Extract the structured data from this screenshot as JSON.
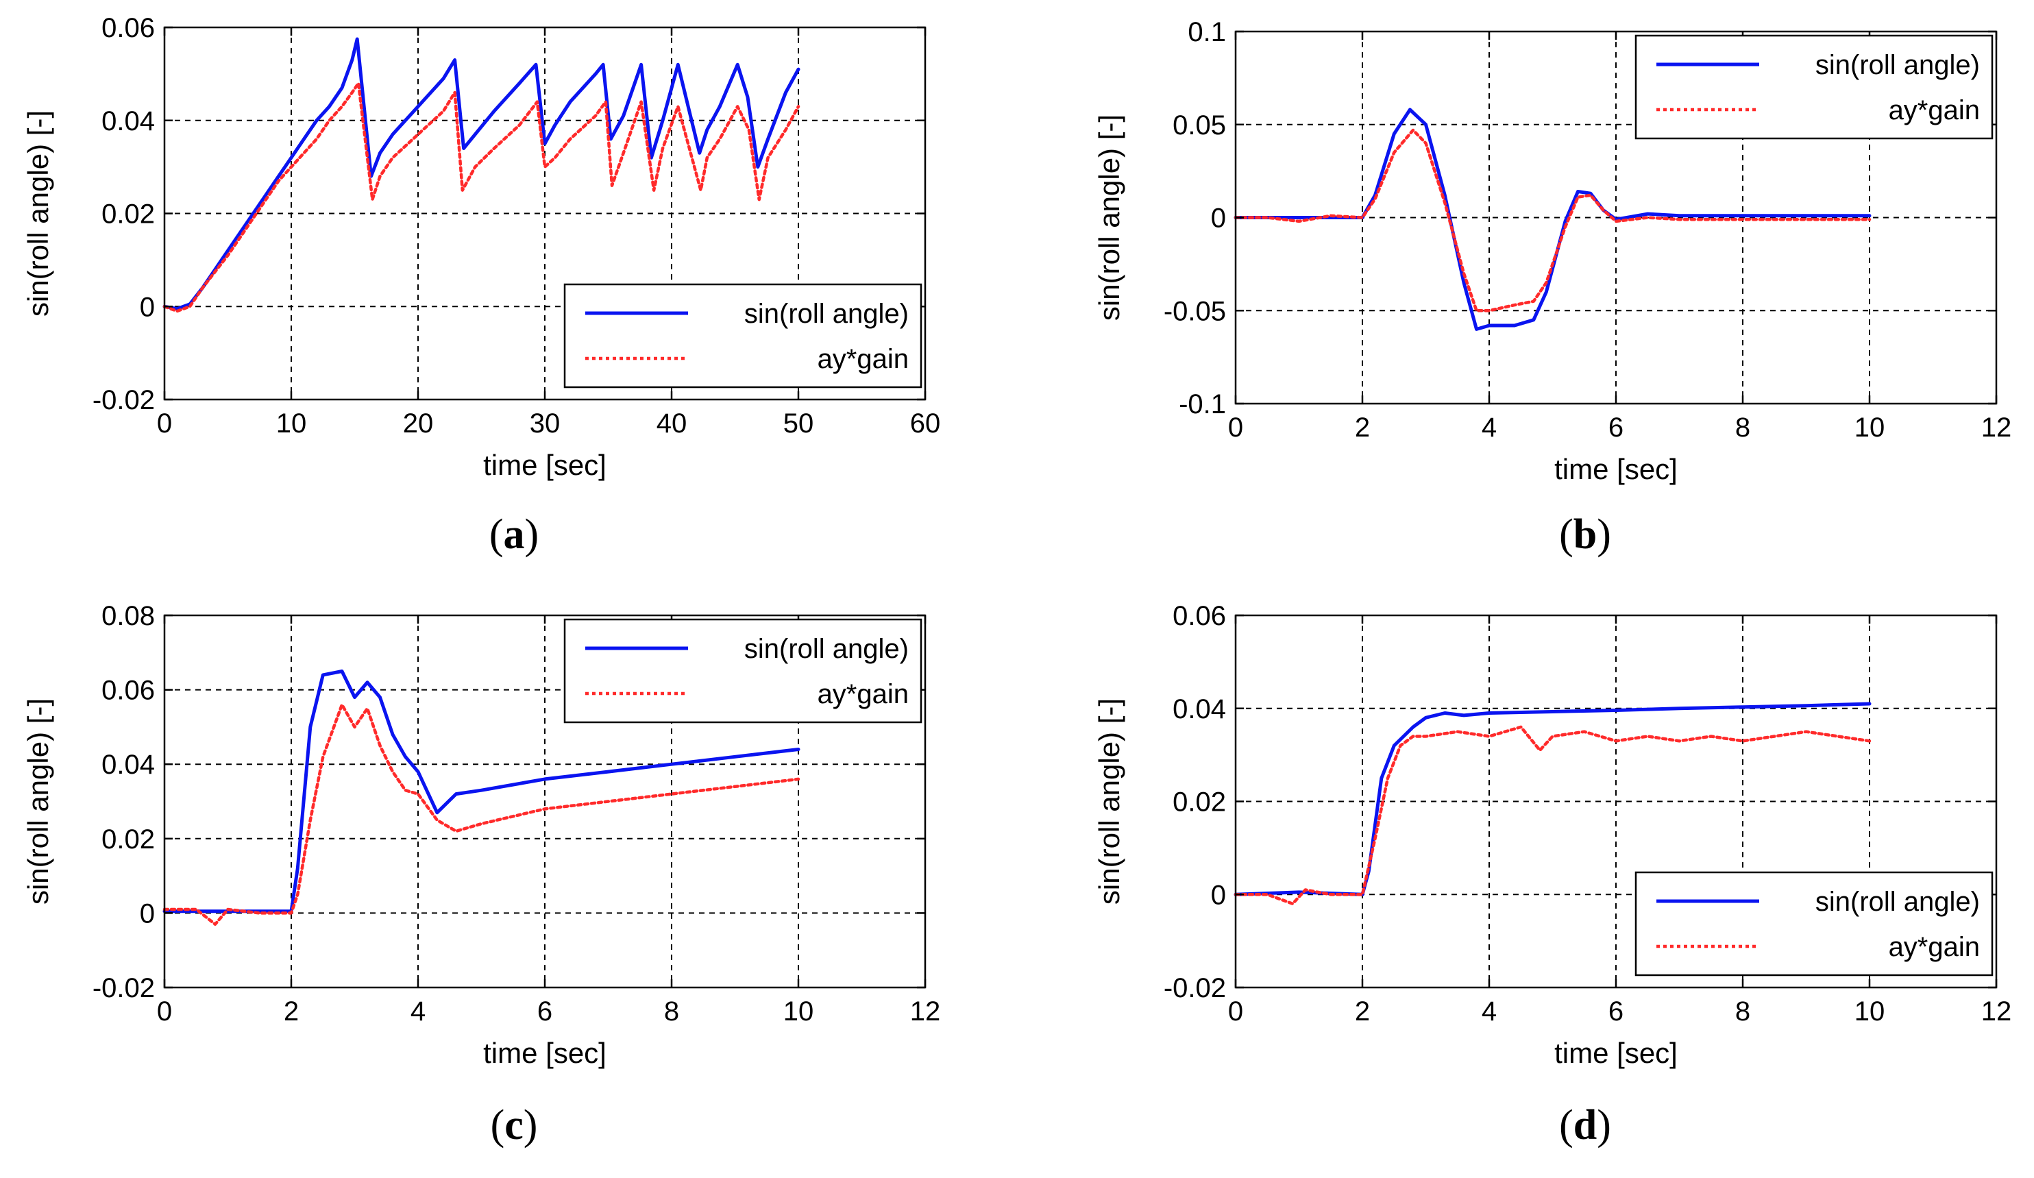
{
  "colors": {
    "series1": "#0a14f0",
    "series2": "#ff2a2a"
  },
  "chart_data": [
    {
      "id": "a",
      "type": "line",
      "panel_label": "a",
      "xlabel": "time [sec]",
      "ylabel": "sin(roll angle) [-]",
      "xlim": [
        0,
        60
      ],
      "ylim": [
        -0.02,
        0.06
      ],
      "xticks": [
        0,
        10,
        20,
        30,
        40,
        50,
        60
      ],
      "yticks": [
        -0.02,
        0,
        0.02,
        0.04,
        0.06
      ],
      "xtick_labels": [
        "0",
        "10",
        "20",
        "30",
        "40",
        "50",
        "60"
      ],
      "ytick_labels": [
        "-0.02",
        "0",
        "0.02",
        "0.04",
        "0.06"
      ],
      "grid": true,
      "legend_position": "bottom-right",
      "series": [
        {
          "name": "sin(roll angle)",
          "style": "solid",
          "x": [
            0,
            1,
            2,
            3,
            4,
            5,
            6,
            7,
            8,
            9,
            10,
            11,
            12,
            13,
            14,
            14.8,
            15.2,
            16.3,
            17,
            18,
            20,
            22,
            22.9,
            23.6,
            24.5,
            26,
            28,
            29.3,
            30,
            30.8,
            32,
            34,
            34.6,
            35.2,
            36.2,
            37.6,
            38.4,
            39.3,
            40.5,
            42.2,
            42.8,
            43.8,
            45.2,
            46,
            46.8,
            47.6,
            49,
            50
          ],
          "y": [
            0.0,
            -0.0005,
            0.0005,
            0.004,
            0.008,
            0.012,
            0.016,
            0.02,
            0.024,
            0.028,
            0.032,
            0.036,
            0.04,
            0.043,
            0.047,
            0.053,
            0.0575,
            0.028,
            0.033,
            0.037,
            0.043,
            0.049,
            0.053,
            0.034,
            0.037,
            0.042,
            0.048,
            0.052,
            0.035,
            0.039,
            0.044,
            0.05,
            0.052,
            0.036,
            0.041,
            0.052,
            0.032,
            0.04,
            0.052,
            0.033,
            0.038,
            0.043,
            0.052,
            0.045,
            0.03,
            0.036,
            0.046,
            0.051
          ]
        },
        {
          "name": "ay*gain",
          "style": "dotted",
          "x": [
            0,
            1,
            2,
            3,
            4,
            5,
            6,
            7,
            8,
            9,
            10,
            11,
            12,
            13,
            14,
            14.8,
            15.3,
            16.4,
            17,
            18,
            20,
            22,
            22.9,
            23.5,
            24.5,
            26,
            28,
            29.4,
            30,
            30.8,
            32,
            34,
            34.8,
            35.3,
            36.2,
            37.6,
            38.6,
            39.3,
            40.5,
            42.3,
            42.8,
            43.8,
            45.2,
            46.1,
            46.9,
            47.6,
            49,
            50
          ],
          "y": [
            0.0,
            -0.001,
            0.0,
            0.004,
            0.0075,
            0.011,
            0.015,
            0.019,
            0.023,
            0.027,
            0.03,
            0.033,
            0.036,
            0.04,
            0.043,
            0.046,
            0.048,
            0.023,
            0.028,
            0.032,
            0.037,
            0.042,
            0.046,
            0.025,
            0.03,
            0.034,
            0.039,
            0.044,
            0.03,
            0.032,
            0.036,
            0.041,
            0.044,
            0.026,
            0.033,
            0.044,
            0.025,
            0.034,
            0.043,
            0.025,
            0.032,
            0.036,
            0.043,
            0.038,
            0.023,
            0.032,
            0.038,
            0.043
          ]
        }
      ]
    },
    {
      "id": "b",
      "type": "line",
      "panel_label": "b",
      "xlabel": "time [sec]",
      "ylabel": "sin(roll angle) [-]",
      "xlim": [
        0,
        12
      ],
      "ylim": [
        -0.1,
        0.1
      ],
      "xticks": [
        0,
        2,
        4,
        6,
        8,
        10,
        12
      ],
      "yticks": [
        -0.1,
        -0.05,
        0,
        0.05,
        0.1
      ],
      "xtick_labels": [
        "0",
        "2",
        "4",
        "6",
        "8",
        "10",
        "12"
      ],
      "ytick_labels": [
        "-0.1",
        "-0.05",
        "0",
        "0.05",
        "0.1"
      ],
      "grid": true,
      "legend_position": "top-right",
      "series": [
        {
          "name": "sin(roll angle)",
          "style": "solid",
          "x": [
            0,
            1,
            2,
            2.2,
            2.5,
            2.75,
            3.0,
            3.3,
            3.6,
            3.8,
            4.0,
            4.4,
            4.7,
            4.9,
            5.2,
            5.4,
            5.6,
            5.8,
            6.0,
            6.5,
            7,
            8,
            9,
            10
          ],
          "y": [
            0,
            0,
            0,
            0.012,
            0.045,
            0.058,
            0.05,
            0.012,
            -0.035,
            -0.06,
            -0.058,
            -0.058,
            -0.055,
            -0.04,
            -0.002,
            0.014,
            0.013,
            0.004,
            -0.001,
            0.002,
            0.001,
            0.001,
            0.001,
            0.001
          ]
        },
        {
          "name": "ay*gain",
          "style": "dotted",
          "x": [
            0,
            0.5,
            1,
            1.5,
            2,
            2.2,
            2.5,
            2.8,
            3.0,
            3.3,
            3.6,
            3.8,
            4.0,
            4.4,
            4.7,
            4.9,
            5.2,
            5.4,
            5.6,
            5.8,
            6.0,
            6.5,
            7,
            8,
            9,
            10
          ],
          "y": [
            0,
            0,
            -0.002,
            0.001,
            0,
            0.01,
            0.035,
            0.047,
            0.04,
            0.008,
            -0.03,
            -0.05,
            -0.05,
            -0.047,
            -0.045,
            -0.035,
            -0.005,
            0.011,
            0.012,
            0.004,
            -0.002,
            0.0,
            -0.001,
            -0.001,
            -0.001,
            -0.001
          ]
        }
      ]
    },
    {
      "id": "c",
      "type": "line",
      "panel_label": "c",
      "xlabel": "time [sec]",
      "ylabel": "sin(roll angle) [-]",
      "xlim": [
        0,
        12
      ],
      "ylim": [
        -0.02,
        0.08
      ],
      "xticks": [
        0,
        2,
        4,
        6,
        8,
        10,
        12
      ],
      "yticks": [
        -0.02,
        0,
        0.02,
        0.04,
        0.06,
        0.08
      ],
      "xtick_labels": [
        "0",
        "2",
        "4",
        "6",
        "8",
        "10",
        "12"
      ],
      "ytick_labels": [
        "-0.02",
        "0",
        "0.02",
        "0.04",
        "0.06",
        "0.08"
      ],
      "grid": true,
      "legend_position": "top-right",
      "series": [
        {
          "name": "sin(roll angle)",
          "style": "solid",
          "x": [
            0,
            1,
            2,
            2.1,
            2.3,
            2.5,
            2.8,
            3.0,
            3.2,
            3.4,
            3.6,
            3.8,
            4.0,
            4.3,
            4.6,
            5,
            6,
            7,
            8,
            9,
            10
          ],
          "y": [
            0.0005,
            0.0005,
            0.0005,
            0.012,
            0.05,
            0.064,
            0.065,
            0.058,
            0.062,
            0.058,
            0.048,
            0.042,
            0.038,
            0.027,
            0.032,
            0.033,
            0.036,
            0.038,
            0.04,
            0.042,
            0.044
          ]
        },
        {
          "name": "ay*gain",
          "style": "dotted",
          "x": [
            0,
            0.5,
            0.8,
            1,
            1.5,
            2,
            2.1,
            2.3,
            2.5,
            2.8,
            3.0,
            3.2,
            3.4,
            3.6,
            3.8,
            4.0,
            4.3,
            4.6,
            5,
            6,
            7,
            8,
            9,
            10
          ],
          "y": [
            0.001,
            0.001,
            -0.003,
            0.001,
            0.0,
            0.0,
            0.005,
            0.025,
            0.042,
            0.056,
            0.05,
            0.055,
            0.045,
            0.038,
            0.033,
            0.032,
            0.025,
            0.022,
            0.024,
            0.028,
            0.03,
            0.032,
            0.034,
            0.036
          ]
        }
      ]
    },
    {
      "id": "d",
      "type": "line",
      "panel_label": "d",
      "xlabel": "time [sec]",
      "ylabel": "sin(roll angle) [-]",
      "xlim": [
        0,
        12
      ],
      "ylim": [
        -0.02,
        0.06
      ],
      "xticks": [
        0,
        2,
        4,
        6,
        8,
        10,
        12
      ],
      "yticks": [
        -0.02,
        0,
        0.02,
        0.04,
        0.06
      ],
      "xtick_labels": [
        "0",
        "2",
        "4",
        "6",
        "8",
        "10",
        "12"
      ],
      "ytick_labels": [
        "-0.02",
        "0",
        "0.02",
        "0.04",
        "0.06"
      ],
      "grid": true,
      "legend_position": "bottom-right",
      "series": [
        {
          "name": "sin(roll angle)",
          "style": "solid",
          "x": [
            0,
            1,
            2,
            2.1,
            2.3,
            2.5,
            2.8,
            3.0,
            3.3,
            3.6,
            4,
            5,
            6,
            7,
            8,
            9,
            10
          ],
          "y": [
            0.0,
            0.0005,
            0.0,
            0.005,
            0.025,
            0.032,
            0.036,
            0.038,
            0.039,
            0.0385,
            0.039,
            0.0393,
            0.0396,
            0.04,
            0.0403,
            0.0406,
            0.041
          ]
        },
        {
          "name": "ay*gain",
          "style": "dotted",
          "x": [
            0,
            0.5,
            0.9,
            1.1,
            1.5,
            2,
            2.2,
            2.4,
            2.6,
            2.8,
            3.0,
            3.5,
            4,
            4.5,
            4.8,
            5,
            5.5,
            6,
            6.5,
            7,
            7.5,
            8,
            8.5,
            9,
            9.5,
            10
          ],
          "y": [
            0.0,
            0.0,
            -0.002,
            0.001,
            0.0,
            0.0,
            0.012,
            0.025,
            0.032,
            0.034,
            0.034,
            0.035,
            0.034,
            0.036,
            0.031,
            0.034,
            0.035,
            0.033,
            0.034,
            0.033,
            0.034,
            0.033,
            0.034,
            0.035,
            0.034,
            0.033
          ]
        }
      ]
    }
  ]
}
